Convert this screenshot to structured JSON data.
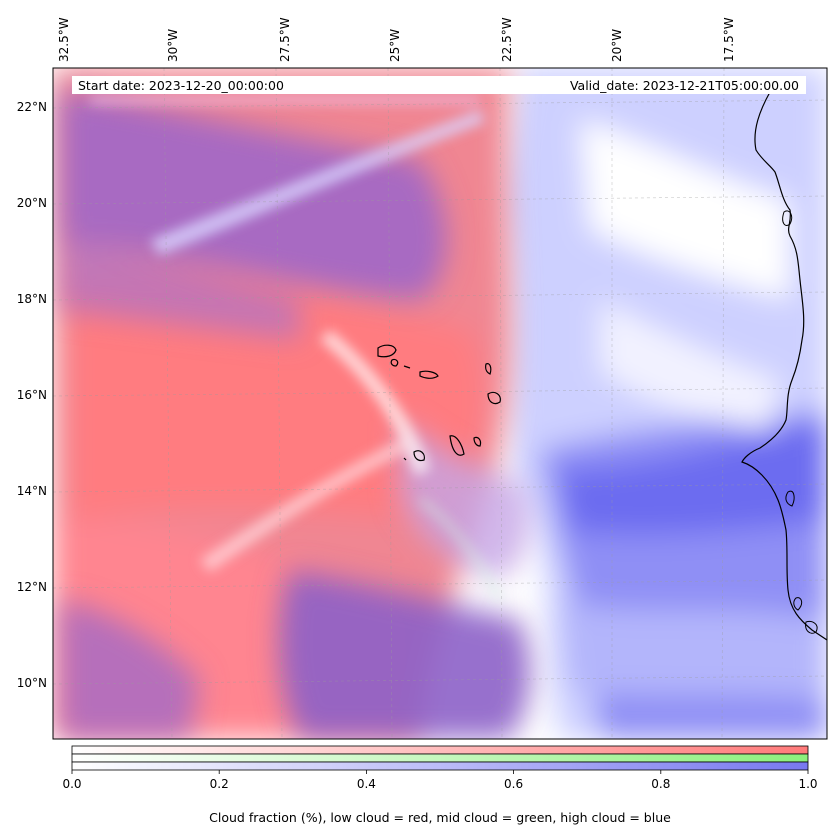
{
  "map": {
    "start_date_label": "Start date: 2023-12-20_00:00:00",
    "valid_date_label": "Valid_date: 2023-12-21T05:00:00.00",
    "longitude_labels": [
      "32.5°W",
      "30°W",
      "27.5°W",
      "25°W",
      "22.5°W",
      "20°W",
      "17.5°W"
    ],
    "latitude_labels": [
      "22°N",
      "20°N",
      "18°N",
      "16°N",
      "14°N",
      "12°N",
      "10°N"
    ],
    "gridlines": true
  },
  "colorbar": {
    "tick_labels": [
      "0.0",
      "0.2",
      "0.4",
      "0.6",
      "0.8",
      "1.0"
    ],
    "title": "Cloud fraction (%), low cloud = red, mid cloud = green, high cloud = blue",
    "low_color": "#ff7a7a",
    "mid_color": "#8cf07c",
    "high_color": "#7878f0",
    "range": [
      0.0,
      1.0
    ]
  }
}
